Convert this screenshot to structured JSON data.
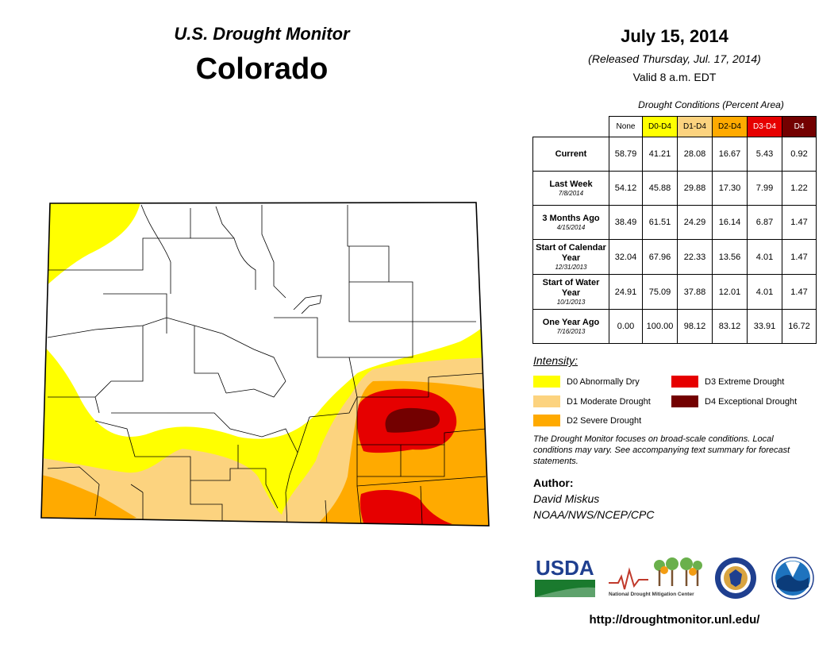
{
  "header": {
    "program": "U.S. Drought Monitor",
    "state": "Colorado",
    "date": "July 15, 2014",
    "released": "(Released Thursday, Jul. 17, 2014)",
    "valid": "Valid 8 a.m. EDT"
  },
  "table": {
    "caption": "Drought Conditions (Percent Area)",
    "columns": [
      "None",
      "D0-D4",
      "D1-D4",
      "D2-D4",
      "D3-D4",
      "D4"
    ],
    "column_colors": [
      "#ffffff",
      "#ffff00",
      "#fcd37f",
      "#ffaa00",
      "#e60000",
      "#730000"
    ],
    "rows": [
      {
        "label": "Current",
        "sub": "",
        "values": [
          "58.79",
          "41.21",
          "28.08",
          "16.67",
          "5.43",
          "0.92"
        ]
      },
      {
        "label": "Last Week",
        "sub": "7/8/2014",
        "values": [
          "54.12",
          "45.88",
          "29.88",
          "17.30",
          "7.99",
          "1.22"
        ]
      },
      {
        "label": "3 Months Ago",
        "sub": "4/15/2014",
        "values": [
          "38.49",
          "61.51",
          "24.29",
          "16.14",
          "6.87",
          "1.47"
        ]
      },
      {
        "label": "Start of Calendar Year",
        "sub": "12/31/2013",
        "values": [
          "32.04",
          "67.96",
          "22.33",
          "13.56",
          "4.01",
          "1.47"
        ]
      },
      {
        "label": "Start of Water Year",
        "sub": "10/1/2013",
        "values": [
          "24.91",
          "75.09",
          "37.88",
          "12.01",
          "4.01",
          "1.47"
        ]
      },
      {
        "label": "One Year Ago",
        "sub": "7/16/2013",
        "values": [
          "0.00",
          "100.00",
          "98.12",
          "83.12",
          "33.91",
          "16.72"
        ]
      }
    ]
  },
  "legend": {
    "title": "Intensity:",
    "items": [
      {
        "label": "D0 Abnormally Dry",
        "color": "#ffff00"
      },
      {
        "label": "D1 Moderate Drought",
        "color": "#fcd37f"
      },
      {
        "label": "D2 Severe Drought",
        "color": "#ffaa00"
      },
      {
        "label": "D3 Extreme Drought",
        "color": "#e60000"
      },
      {
        "label": "D4 Exceptional Drought",
        "color": "#730000"
      }
    ]
  },
  "note": "The Drought Monitor focuses on broad-scale conditions. Local conditions may vary. See accompanying text summary for forecast statements.",
  "author": {
    "label": "Author:",
    "name": "David Miskus",
    "org": "NOAA/NWS/NCEP/CPC"
  },
  "logos": {
    "usda": "USDA",
    "ndmc": "National Drought Mitigation Center"
  },
  "url": "http://droughtmonitor.unl.edu/"
}
